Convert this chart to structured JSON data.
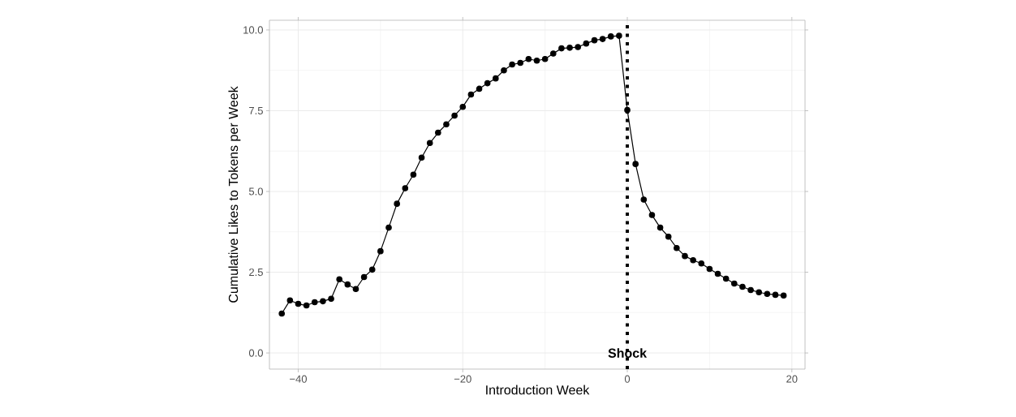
{
  "chart_data": {
    "type": "line",
    "xlabel": "Introduction Week",
    "ylabel": "Cumulative Likes to Tokens per Week",
    "x": [
      -42,
      -41,
      -40,
      -39,
      -38,
      -37,
      -36,
      -35,
      -34,
      -33,
      -32,
      -31,
      -30,
      -29,
      -28,
      -27,
      -26,
      -25,
      -24,
      -23,
      -22,
      -21,
      -20,
      -19,
      -18,
      -17,
      -16,
      -15,
      -14,
      -13,
      -12,
      -11,
      -10,
      -9,
      -8,
      -7,
      -6,
      -5,
      -4,
      -3,
      -2,
      -1,
      0,
      1,
      2,
      3,
      4,
      5,
      6,
      7,
      8,
      9,
      10,
      11,
      12,
      13,
      14,
      15,
      16,
      17,
      18,
      19
    ],
    "series": [
      {
        "color": "#000000",
        "values": [
          1.22,
          1.63,
          1.52,
          1.47,
          1.57,
          1.6,
          1.68,
          2.28,
          2.12,
          1.98,
          2.35,
          2.58,
          3.15,
          3.88,
          4.62,
          5.1,
          5.52,
          6.05,
          6.5,
          6.82,
          7.08,
          7.35,
          7.62,
          8.0,
          8.18,
          8.35,
          8.5,
          8.75,
          8.93,
          8.98,
          9.1,
          9.05,
          9.1,
          9.27,
          9.43,
          9.45,
          9.47,
          9.58,
          9.68,
          9.72,
          9.8,
          9.82,
          7.52,
          5.85,
          4.75,
          4.27,
          3.88,
          3.6,
          3.25,
          3.0,
          2.87,
          2.77,
          2.6,
          2.45,
          2.3,
          2.15,
          2.05,
          1.95,
          1.88,
          1.83,
          1.8,
          1.78
        ]
      }
    ],
    "xlim": [
      -43.5,
      21.6
    ],
    "ylim": [
      -0.5,
      10.3
    ],
    "xticks": [
      {
        "value": -40,
        "label": "−40"
      },
      {
        "value": -20,
        "label": "−20"
      },
      0,
      20
    ],
    "yticks": [
      {
        "value": 0,
        "label": "0.0"
      },
      {
        "value": 2.5,
        "label": "2.5"
      },
      {
        "value": 5,
        "label": "5.0"
      },
      {
        "value": 7.5,
        "label": "7.5"
      },
      {
        "value": 10,
        "label": "10.0"
      }
    ],
    "grid": true,
    "marker": "circle",
    "line_style": "solid",
    "ref_lines": [
      {
        "axis": "x",
        "value": 0,
        "label": "Shock",
        "color": "#000000",
        "line_style": "dotted"
      }
    ]
  }
}
